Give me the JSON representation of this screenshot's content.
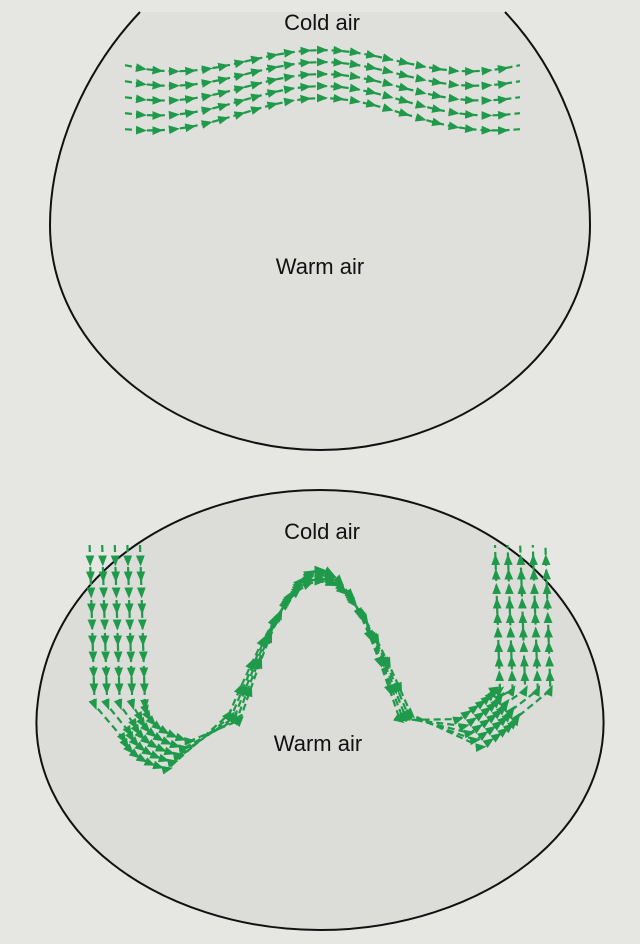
{
  "panels": [
    {
      "top_label": "Cold air",
      "bottom_label": "Warm air"
    },
    {
      "top_label": "Cold air",
      "bottom_label": "Warm air"
    }
  ]
}
